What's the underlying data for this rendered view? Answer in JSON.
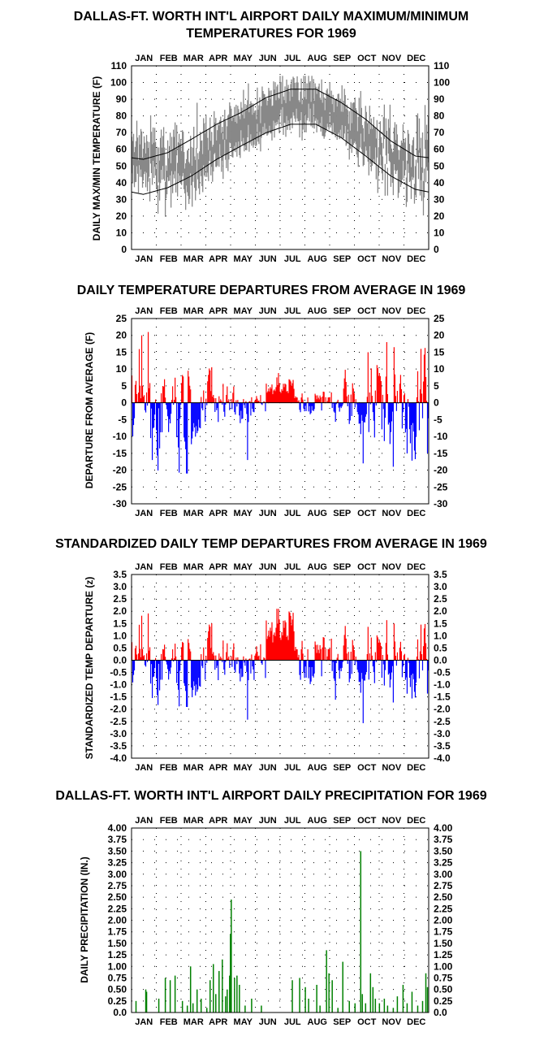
{
  "months": [
    "JAN",
    "FEB",
    "MAR",
    "APR",
    "MAY",
    "JUN",
    "JUL",
    "AUG",
    "SEP",
    "OCT",
    "NOV",
    "DEC"
  ],
  "colors": {
    "daily_range": "#888888",
    "normals": "#000000",
    "positive": "#ff0000",
    "negative": "#0000ff",
    "precip": "#008000"
  },
  "chart_data": [
    {
      "type": "area",
      "title_lines": [
        "DALLAS-FT. WORTH INT'L AIRPORT DAILY MAXIMUM/MINIMUM",
        "TEMPERATURES FOR 1969"
      ],
      "ylabel": "DAILY MAX/MIN TEMPERATURE (F)",
      "ylim": [
        0,
        110
      ],
      "yticks": [
        0,
        10,
        20,
        30,
        40,
        50,
        60,
        70,
        80,
        90,
        100,
        110
      ],
      "grid": true,
      "series": [
        {
          "name": "",
          "kind": "daily max/min range (gray)"
        },
        {
          "name": "",
          "kind": "normal high (black line)",
          "monthly_values": [
            54,
            58,
            66,
            75,
            82,
            91,
            96,
            96,
            88,
            78,
            65,
            56
          ]
        },
        {
          "name": "",
          "kind": "normal low (black line)",
          "monthly_values": [
            33,
            37,
            44,
            54,
            62,
            70,
            75,
            75,
            67,
            56,
            44,
            36
          ]
        }
      ],
      "monthly_mean_max": [
        62,
        62,
        60,
        76,
        84,
        91,
        98,
        96,
        88,
        78,
        66,
        62
      ],
      "monthly_mean_min": [
        40,
        40,
        36,
        54,
        62,
        70,
        77,
        76,
        67,
        56,
        44,
        41
      ]
    },
    {
      "type": "bar",
      "title": "DAILY TEMPERATURE DEPARTURES FROM AVERAGE IN 1969",
      "ylabel": "DEPARTURE FROM AVERAGE (F)",
      "ylim": [
        -30,
        25
      ],
      "yticks": [
        25,
        20,
        15,
        10,
        5,
        0,
        -5,
        -10,
        -15,
        -20,
        -25,
        -30
      ],
      "grid": true,
      "annotations": {
        "max_positive": 21,
        "min_negative": -21
      }
    },
    {
      "type": "bar",
      "title": "STANDARDIZED DAILY TEMP DEPARTURES FROM AVERAGE IN 1969",
      "ylabel": "STANDARDIZED TEMP DEPARTURE (z)",
      "ylim": [
        -4,
        3.5
      ],
      "yticks": [
        "3.5",
        "3.0",
        "2.5",
        "2.0",
        "1.5",
        "1.0",
        "0.5",
        "0.0",
        "-0.5",
        "-1.0",
        "-1.5",
        "-2.0",
        "-2.5",
        "-3.0",
        "-3.5",
        "-4.0"
      ],
      "grid": true,
      "annotations": {
        "max_positive": 2.1,
        "min_negative": -3.1
      }
    },
    {
      "type": "bar",
      "title": "DALLAS-FT. WORTH INT'L AIRPORT DAILY PRECIPITATION FOR 1969",
      "ylabel": "DAILY PRECIPITATION (IN.)",
      "ylim": [
        0,
        4
      ],
      "yticks": [
        "0.0",
        "0.25",
        "0.50",
        "0.75",
        "1.00",
        "1.25",
        "1.50",
        "1.75",
        "2.00",
        "2.25",
        "2.50",
        "2.75",
        "3.00",
        "3.25",
        "3.50",
        "3.75",
        "4.00"
      ],
      "grid": true,
      "values": [
        {
          "day": 6,
          "in": 0.25
        },
        {
          "day": 18,
          "in": 0.5
        },
        {
          "day": 19,
          "in": 0.45
        },
        {
          "day": 34,
          "in": 0.3
        },
        {
          "day": 42,
          "in": 0.75
        },
        {
          "day": 48,
          "in": 0.7
        },
        {
          "day": 54,
          "in": 0.8
        },
        {
          "day": 63,
          "in": 0.25
        },
        {
          "day": 69,
          "in": 0.15
        },
        {
          "day": 73,
          "in": 1.0
        },
        {
          "day": 76,
          "in": 0.2
        },
        {
          "day": 81,
          "in": 0.5
        },
        {
          "day": 86,
          "in": 0.3
        },
        {
          "day": 93,
          "in": 0.1
        },
        {
          "day": 97,
          "in": 0.7
        },
        {
          "day": 101,
          "in": 1.05
        },
        {
          "day": 104,
          "in": 0.4
        },
        {
          "day": 108,
          "in": 0.9
        },
        {
          "day": 112,
          "in": 1.15
        },
        {
          "day": 116,
          "in": 0.35
        },
        {
          "day": 118,
          "in": 0.5
        },
        {
          "day": 121,
          "in": 0.8
        },
        {
          "day": 122,
          "in": 1.7
        },
        {
          "day": 123,
          "in": 2.45
        },
        {
          "day": 127,
          "in": 0.75
        },
        {
          "day": 130,
          "in": 0.8
        },
        {
          "day": 133,
          "in": 0.6
        },
        {
          "day": 140,
          "in": 0.15
        },
        {
          "day": 148,
          "in": 0.3
        },
        {
          "day": 160,
          "in": 0.15
        },
        {
          "day": 198,
          "in": 0.7
        },
        {
          "day": 207,
          "in": 0.75
        },
        {
          "day": 214,
          "in": 0.55
        },
        {
          "day": 218,
          "in": 0.3
        },
        {
          "day": 228,
          "in": 0.6
        },
        {
          "day": 232,
          "in": 0.15
        },
        {
          "day": 240,
          "in": 1.35
        },
        {
          "day": 243,
          "in": 0.85
        },
        {
          "day": 247,
          "in": 0.7
        },
        {
          "day": 254,
          "in": 0.1
        },
        {
          "day": 260,
          "in": 1.1
        },
        {
          "day": 268,
          "in": 0.25
        },
        {
          "day": 275,
          "in": 0.2
        },
        {
          "day": 282,
          "in": 3.5
        },
        {
          "day": 284,
          "in": 0.4
        },
        {
          "day": 288,
          "in": 0.2
        },
        {
          "day": 294,
          "in": 0.85
        },
        {
          "day": 297,
          "in": 0.55
        },
        {
          "day": 300,
          "in": 0.3
        },
        {
          "day": 305,
          "in": 0.2
        },
        {
          "day": 311,
          "in": 0.3
        },
        {
          "day": 315,
          "in": 0.15
        },
        {
          "day": 322,
          "in": 0.1
        },
        {
          "day": 327,
          "in": 0.35
        },
        {
          "day": 334,
          "in": 0.6
        },
        {
          "day": 339,
          "in": 0.2
        },
        {
          "day": 345,
          "in": 0.45
        },
        {
          "day": 352,
          "in": 0.15
        },
        {
          "day": 358,
          "in": 0.25
        },
        {
          "day": 362,
          "in": 0.85
        },
        {
          "day": 364,
          "in": 0.55
        }
      ]
    }
  ]
}
